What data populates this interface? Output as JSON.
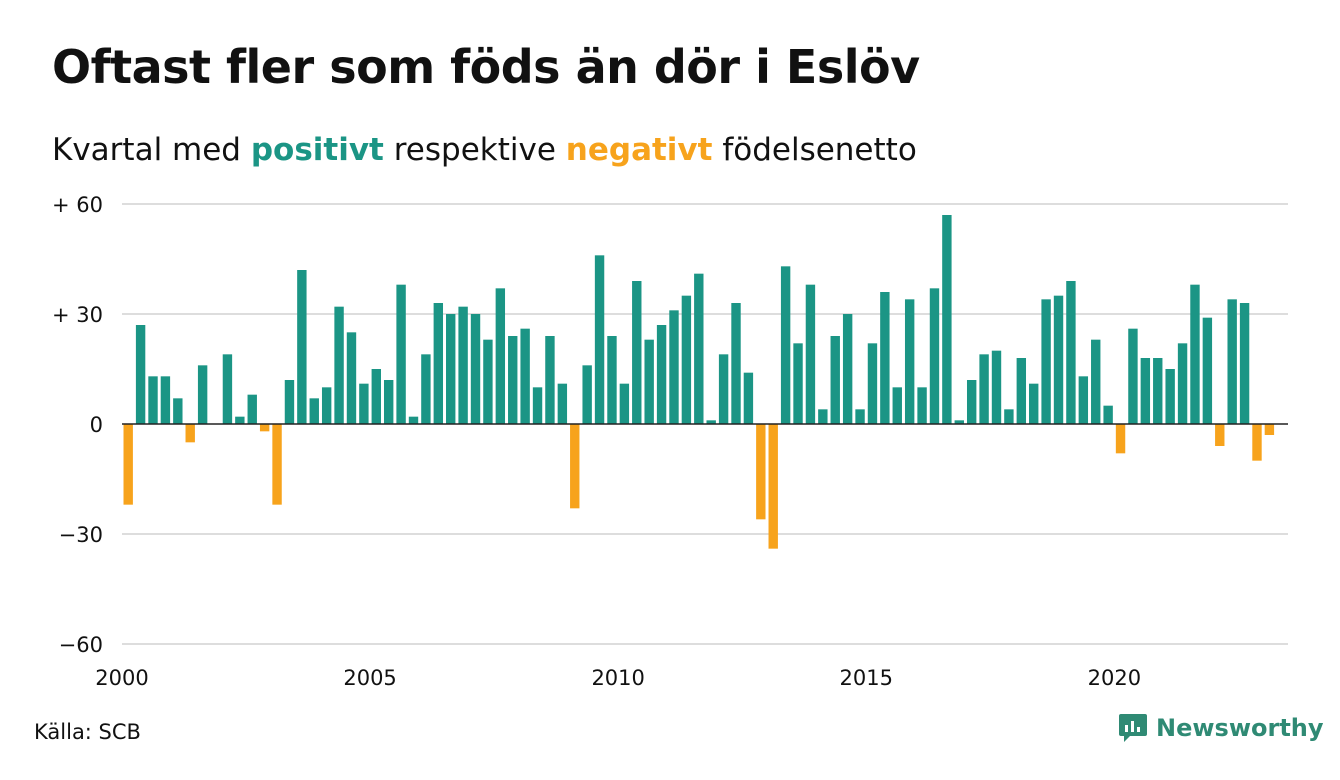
{
  "title": "Oftast fler som föds än dör i Eslöv",
  "subtitle": {
    "pre": "Kvartal med ",
    "positive": "positivt",
    "mid": " respektive ",
    "negative": "negativt",
    "post": " födelsenetto"
  },
  "source": "Källa: SCB",
  "brand": {
    "name": "Newsworthy",
    "icon": "newsworthy-chart-bubble-icon"
  },
  "colors": {
    "positive": "#1b9585",
    "negative": "#f7a31c",
    "grid": "#dddddd",
    "zero": "#222222",
    "brand": "#2f8a74"
  },
  "chart_data": {
    "type": "bar",
    "title": "Oftast fler som föds än dör i Eslöv",
    "xlabel": "",
    "ylabel": "",
    "x_start": 2000.0,
    "x_step": 0.25,
    "xlim": [
      2000,
      2023.5
    ],
    "ylim": [
      -60,
      60
    ],
    "yticks": [
      60,
      30,
      0,
      -30,
      -60
    ],
    "ytick_labels": [
      "+ 60",
      "+ 30",
      "0",
      "−30",
      "−60"
    ],
    "xticks": [
      2000,
      2005,
      2010,
      2015,
      2020
    ],
    "xtick_labels": [
      "2000",
      "2005",
      "2010",
      "2015",
      "2020"
    ],
    "grid": true,
    "values": [
      -22,
      27,
      13,
      13,
      7,
      -5,
      16,
      0,
      19,
      2,
      8,
      -2,
      -22,
      12,
      42,
      7,
      10,
      32,
      25,
      11,
      15,
      12,
      38,
      2,
      19,
      33,
      30,
      32,
      30,
      23,
      37,
      24,
      26,
      10,
      24,
      11,
      -23,
      16,
      46,
      24,
      11,
      39,
      23,
      27,
      31,
      35,
      41,
      1,
      19,
      33,
      14,
      -26,
      -34,
      43,
      22,
      38,
      4,
      24,
      30,
      4,
      22,
      36,
      10,
      34,
      10,
      37,
      57,
      1,
      12,
      19,
      20,
      4,
      18,
      11,
      34,
      35,
      39,
      13,
      23,
      5,
      -8,
      26,
      18,
      18,
      15,
      22,
      38,
      29,
      -6,
      34,
      33,
      -10,
      -3
    ]
  }
}
